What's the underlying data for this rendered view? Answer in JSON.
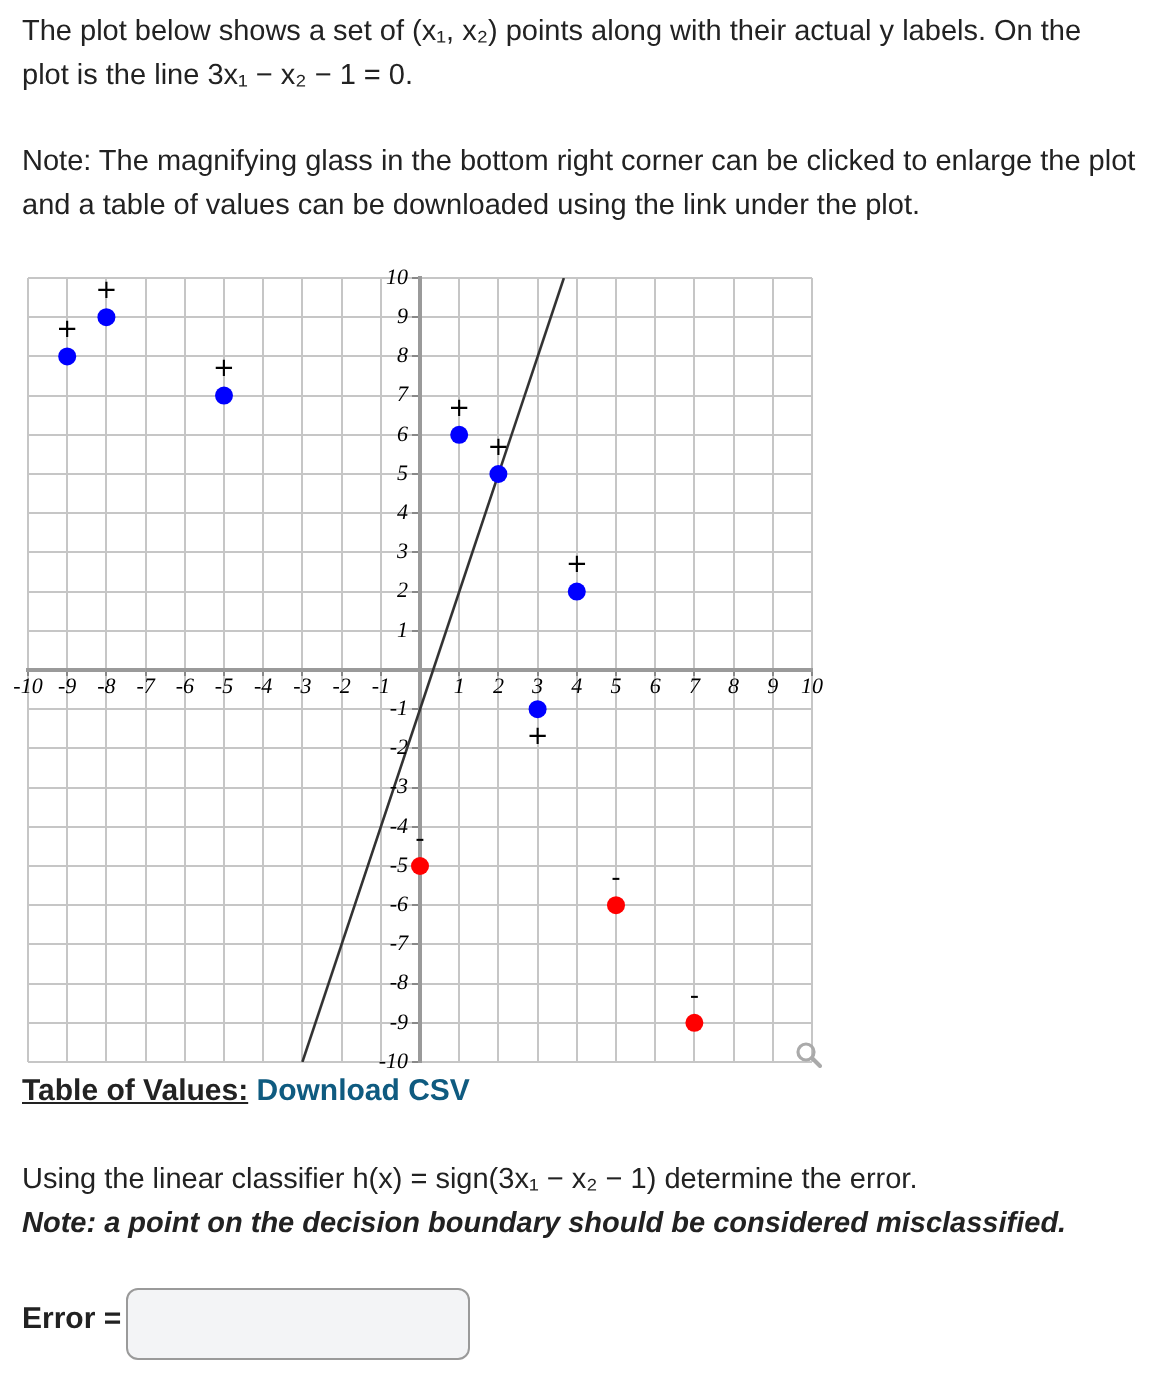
{
  "chart_data": {
    "type": "scatter",
    "title": "The plot below shows a set of (x₁, x₂) points along with their actual y labels. On the plot is the line 3x₁ − x₂ − 1 = 0.",
    "annotations": [
      "Note: The magnifying glass in the bottom right corner can be clicked to enlarge the plot and a table of values can be downloaded using the link under the plot.",
      "Table of Values:",
      "Download CSV",
      "Using the linear classifier h(x) = sign(3x₁ − x₂ − 1) determine the error.",
      "Note: a point on the decision boundary should be considered misclassified.",
      "Error ="
    ],
    "xlim": [
      -10,
      10
    ],
    "ylim": [
      -10,
      10
    ],
    "xticks": [
      -10,
      -9,
      -8,
      -7,
      -6,
      -5,
      -4,
      -3,
      -2,
      -1,
      {
        "value": 0,
        "label": null
      },
      1,
      2,
      3,
      4,
      5,
      6,
      7,
      8,
      9,
      10
    ],
    "yticks": [
      -10,
      -9,
      -8,
      -7,
      -6,
      -5,
      -4,
      -3,
      -2,
      -1,
      {
        "value": 0,
        "label": null
      },
      1,
      2,
      3,
      4,
      5,
      6,
      7,
      8,
      9,
      10
    ],
    "grid": true,
    "marker": "circle",
    "series": [
      {
        "name": "+",
        "color": "#0000ff",
        "x": [
          -9,
          -8,
          -5,
          1,
          2,
          4,
          3
        ],
        "values": [
          8,
          9,
          7,
          6,
          5,
          2,
          -1
        ]
      },
      {
        "name": "-",
        "color": "#ff0000",
        "x": [
          0,
          5,
          7
        ],
        "values": [
          -5,
          -6,
          -9
        ]
      },
      {
        "type": "line",
        "color": "#333333",
        "marker": "none",
        "line_style": "solid",
        "x": [
          -3,
          3.67
        ],
        "values": [
          -10,
          10
        ]
      }
    ]
  }
}
